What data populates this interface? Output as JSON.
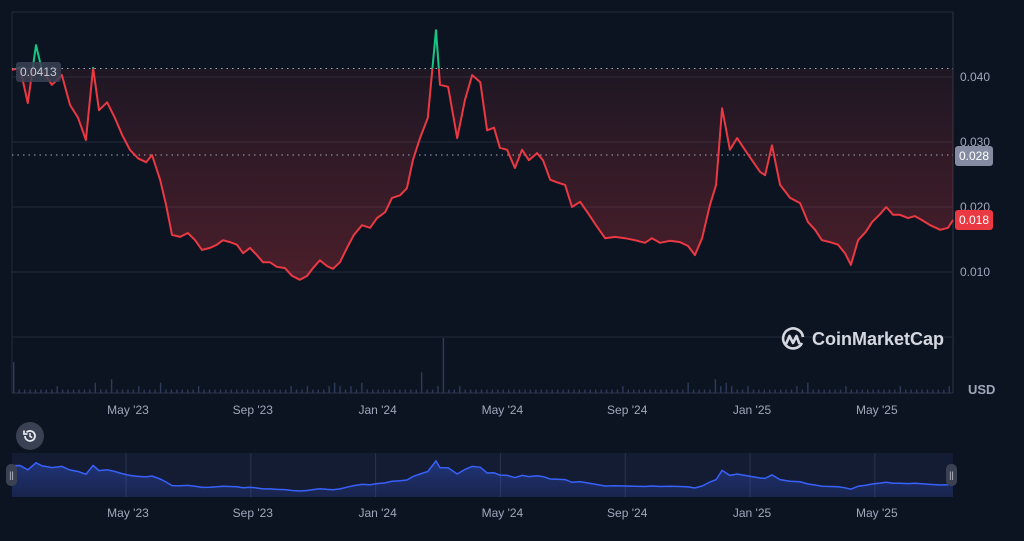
{
  "chart_data": {
    "type": "line",
    "title": "",
    "xlabel": "",
    "ylabel": "USD",
    "x_unit": "months since Jan 2023",
    "x_ticks": [
      {
        "x": 4,
        "label": "May '23"
      },
      {
        "x": 8,
        "label": "Sep '23"
      },
      {
        "x": 12,
        "label": "Jan '24"
      },
      {
        "x": 16,
        "label": "May '24"
      },
      {
        "x": 20,
        "label": "Sep '24"
      },
      {
        "x": 24,
        "label": "Jan '25"
      },
      {
        "x": 28,
        "label": "May '25"
      }
    ],
    "y_ticks": [
      {
        "y": 0.04,
        "label": "0.040"
      },
      {
        "y": 0.03,
        "label": "0.030"
      },
      {
        "y": 0.02,
        "label": "0.020"
      },
      {
        "y": 0.01,
        "label": "0.010"
      }
    ],
    "ylim": [
      -0.0009,
      0.05
    ],
    "xlim": [
      0.28,
      30.44
    ],
    "grid": true,
    "baseline": {
      "value": 0.0413,
      "label": "0.0413"
    },
    "current_price": {
      "value": 0.018,
      "label": "0.018",
      "color": "#ea3943"
    },
    "crosshair_price": {
      "value": 0.028,
      "label": "0.028",
      "color": "#858ca2"
    },
    "colors": {
      "up": "#16c784",
      "down": "#ea3943",
      "minimap": "#3861fb",
      "volume": "#2f3a5c"
    },
    "series": [
      {
        "name": "Price",
        "x": [
          0.28,
          0.54,
          0.79,
          1.05,
          1.24,
          1.56,
          1.88,
          2.14,
          2.4,
          2.65,
          2.88,
          3.07,
          3.33,
          3.58,
          3.81,
          4.06,
          4.32,
          4.58,
          4.77,
          5.03,
          5.22,
          5.41,
          5.67,
          5.92,
          6.15,
          6.37,
          6.63,
          6.85,
          7.04,
          7.27,
          7.49,
          7.69,
          7.91,
          8.13,
          8.33,
          8.55,
          8.77,
          9.03,
          9.26,
          9.51,
          9.74,
          9.93,
          10.15,
          10.38,
          10.57,
          10.79,
          11.02,
          11.24,
          11.5,
          11.76,
          11.98,
          12.24,
          12.46,
          12.72,
          12.94,
          13.13,
          13.36,
          13.61,
          13.87,
          14.0,
          14.26,
          14.55,
          14.8,
          15.03,
          15.29,
          15.51,
          15.73,
          15.92,
          16.15,
          16.4,
          16.63,
          16.85,
          17.11,
          17.3,
          17.53,
          17.75,
          18.01,
          18.23,
          18.49,
          18.74,
          19.0,
          19.29,
          19.61,
          19.93,
          20.25,
          20.57,
          20.79,
          21.05,
          21.37,
          21.69,
          21.95,
          22.17,
          22.4,
          22.65,
          22.85,
          23.04,
          23.29,
          23.52,
          23.77,
          24.0,
          24.26,
          24.42,
          24.64,
          24.9,
          25.22,
          25.54,
          25.79,
          26.02,
          26.24,
          26.5,
          26.76,
          26.98,
          27.17,
          27.4,
          27.65,
          27.85,
          28.1,
          28.3,
          28.52,
          28.74,
          29.0,
          29.22,
          29.44,
          29.71,
          30.03,
          30.28,
          30.44
        ],
        "values": [
          0.0411,
          0.0414,
          0.036,
          0.0449,
          0.0411,
          0.0388,
          0.0403,
          0.0357,
          0.0337,
          0.0303,
          0.0414,
          0.0349,
          0.0361,
          0.0337,
          0.0311,
          0.0288,
          0.0275,
          0.0269,
          0.028,
          0.0242,
          0.0203,
          0.0157,
          0.0154,
          0.016,
          0.0149,
          0.0134,
          0.0137,
          0.0142,
          0.0149,
          0.0146,
          0.0142,
          0.0129,
          0.0137,
          0.0126,
          0.0115,
          0.0115,
          0.0108,
          0.0106,
          0.0094,
          0.0088,
          0.0094,
          0.0106,
          0.0118,
          0.0109,
          0.0105,
          0.0115,
          0.0137,
          0.0157,
          0.0172,
          0.0168,
          0.0183,
          0.0192,
          0.0214,
          0.0218,
          0.0229,
          0.0272,
          0.0306,
          0.0337,
          0.0472,
          0.0388,
          0.0385,
          0.0306,
          0.0365,
          0.0403,
          0.0392,
          0.0318,
          0.0322,
          0.0291,
          0.0288,
          0.026,
          0.0288,
          0.0272,
          0.0283,
          0.0272,
          0.0242,
          0.0238,
          0.0234,
          0.02,
          0.0208,
          0.0191,
          0.0172,
          0.0152,
          0.0154,
          0.0152,
          0.0149,
          0.0145,
          0.0152,
          0.0145,
          0.0148,
          0.0146,
          0.014,
          0.0126,
          0.0152,
          0.0203,
          0.0234,
          0.0352,
          0.0288,
          0.0306,
          0.0288,
          0.0272,
          0.0254,
          0.0249,
          0.0295,
          0.0234,
          0.0214,
          0.0206,
          0.0177,
          0.0165,
          0.0149,
          0.0146,
          0.0142,
          0.0129,
          0.0111,
          0.0149,
          0.0162,
          0.0177,
          0.0189,
          0.02,
          0.0188,
          0.0188,
          0.0183,
          0.0186,
          0.018,
          0.0172,
          0.0165,
          0.0168,
          0.018
        ]
      }
    ],
    "volume": [
      9,
      1,
      1,
      1,
      1,
      1,
      1,
      1,
      2,
      1,
      1,
      1,
      1,
      1,
      1,
      3,
      1,
      1,
      4,
      1,
      1,
      1,
      1,
      2,
      1,
      1,
      1,
      3,
      1,
      1,
      1,
      1,
      1,
      1,
      2,
      1,
      1,
      1,
      1,
      1,
      1,
      1,
      1,
      1,
      1,
      1,
      1,
      1,
      1,
      1,
      1,
      2,
      1,
      1,
      2,
      1,
      1,
      1,
      2,
      3,
      2,
      1,
      2,
      1,
      3,
      1,
      1,
      1,
      1,
      1,
      1,
      1,
      1,
      1,
      1,
      6,
      1,
      1,
      2,
      16,
      1,
      1,
      2,
      1,
      1,
      1,
      1,
      1,
      1,
      1,
      1,
      1,
      1,
      1,
      1,
      1,
      1,
      1,
      1,
      1,
      1,
      1,
      1,
      1,
      1,
      1,
      1,
      1,
      1,
      1,
      1,
      1,
      2,
      1,
      1,
      1,
      1,
      1,
      1,
      1,
      1,
      1,
      1,
      1,
      3,
      1,
      1,
      1,
      1,
      4,
      2,
      3,
      2,
      1,
      1,
      2,
      1,
      1,
      1,
      1,
      1,
      1,
      1,
      1,
      2,
      1,
      3,
      1,
      1,
      1,
      1,
      1,
      1,
      2,
      1,
      1,
      1,
      1,
      1,
      1,
      1,
      1,
      1,
      2,
      1,
      1,
      1,
      1,
      1,
      1,
      1,
      1,
      2
    ]
  },
  "watermark": "CoinMarketCap",
  "currency": "USD"
}
